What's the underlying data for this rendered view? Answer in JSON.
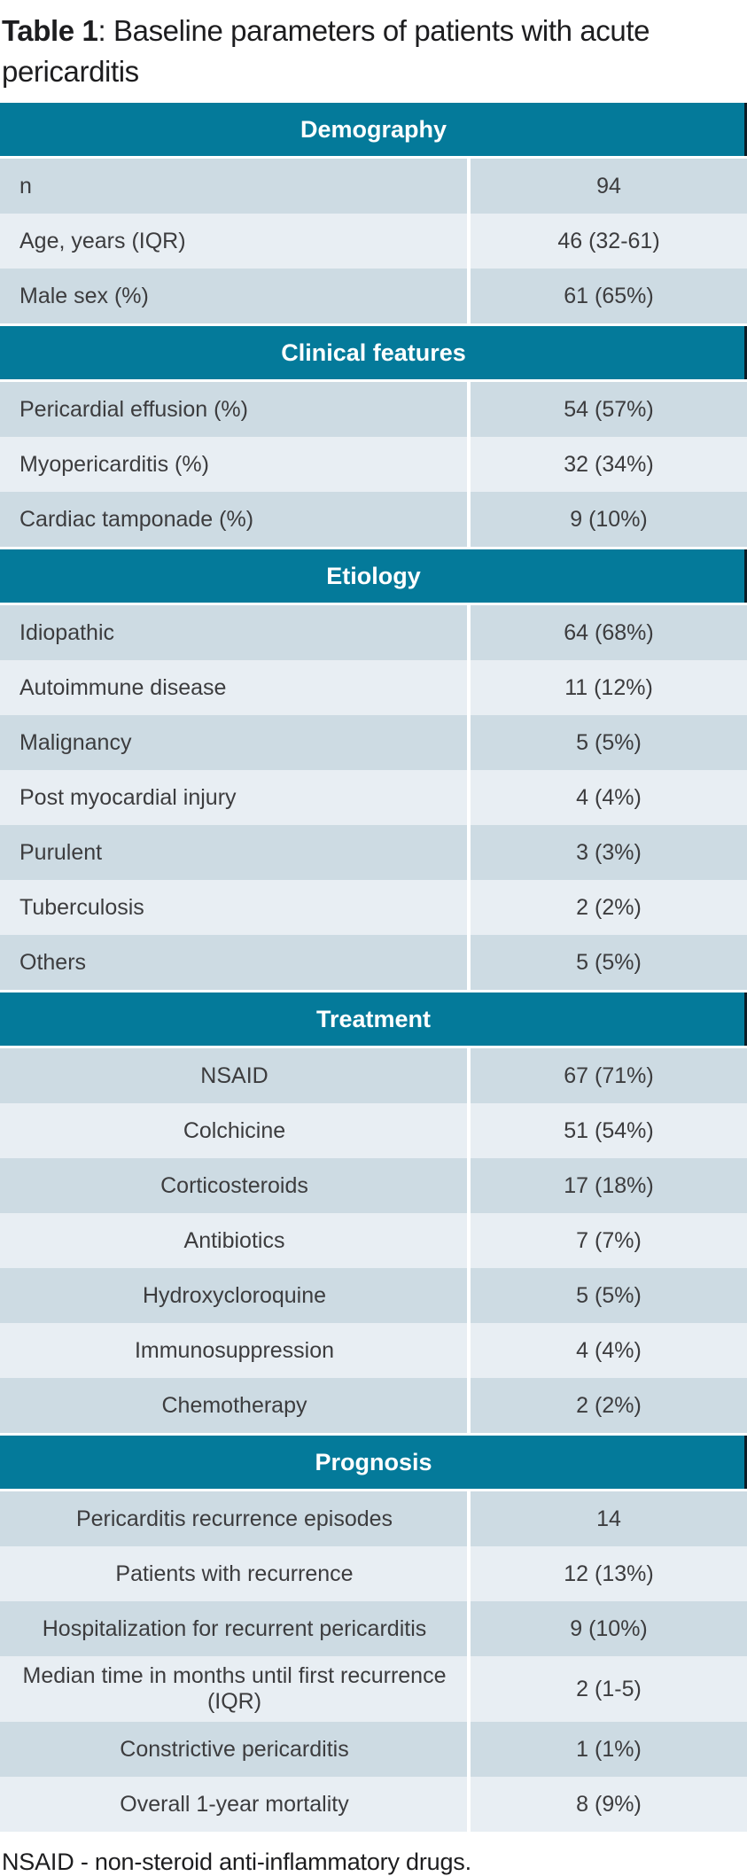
{
  "page": {
    "title_bold": "Table 1",
    "title_rest": ": Baseline parameters of patients with acute pericarditis",
    "footnote": "NSAID - non-steroid anti-inflammatory drugs."
  },
  "colors": {
    "header_bg": "#047A9A",
    "header_text": "#FFFFFF",
    "header_edge": "#0B1C26",
    "row_dark": "#CDDBE3",
    "row_light": "#E8EEF3",
    "text": "#3C3C3E"
  },
  "table": {
    "sections": [
      {
        "header": "Demography",
        "align": "left",
        "rows": [
          {
            "label": "n",
            "value": "94"
          },
          {
            "label": "Age, years (IQR)",
            "value": "46 (32-61)"
          },
          {
            "label": "Male sex (%)",
            "value": "61 (65%)"
          }
        ]
      },
      {
        "header": "Clinical features",
        "align": "left",
        "rows": [
          {
            "label": "Pericardial effusion (%)",
            "value": "54 (57%)"
          },
          {
            "label": "Myopericarditis (%)",
            "value": "32 (34%)"
          },
          {
            "label": "Cardiac tamponade (%)",
            "value": "9 (10%)"
          }
        ]
      },
      {
        "header": "Etiology",
        "align": "left",
        "rows": [
          {
            "label": "Idiopathic",
            "value": "64 (68%)"
          },
          {
            "label": "Autoimmune disease",
            "value": "11 (12%)"
          },
          {
            "label": "Malignancy",
            "value": "5 (5%)"
          },
          {
            "label": "Post myocardial injury",
            "value": "4 (4%)"
          },
          {
            "label": "Purulent",
            "value": "3 (3%)"
          },
          {
            "label": "Tuberculosis",
            "value": "2 (2%)"
          },
          {
            "label": "Others",
            "value": "5 (5%)"
          }
        ]
      },
      {
        "header": "Treatment",
        "align": "center",
        "rows": [
          {
            "label": "NSAID",
            "value": "67 (71%)"
          },
          {
            "label": "Colchicine",
            "value": "51 (54%)"
          },
          {
            "label": "Corticosteroids",
            "value": "17 (18%)"
          },
          {
            "label": "Antibiotics",
            "value": "7 (7%)"
          },
          {
            "label": "Hydroxycloroquine",
            "value": "5 (5%)"
          },
          {
            "label": "Immunosuppression",
            "value": "4 (4%)"
          },
          {
            "label": "Chemotherapy",
            "value": "2 (2%)"
          }
        ]
      },
      {
        "header": "Prognosis",
        "align": "center",
        "rows": [
          {
            "label": "Pericarditis recurrence episodes",
            "value": "14"
          },
          {
            "label": "Patients with recurrence",
            "value": "12 (13%)"
          },
          {
            "label": "Hospitalization for recurrent pericarditis",
            "value": "9 (10%)"
          },
          {
            "label": "Median time in months until first recurrence (IQR)",
            "value": "2 (1-5)"
          },
          {
            "label": "Constrictive pericarditis",
            "value": "1 (1%)"
          },
          {
            "label": "Overall 1-year mortality",
            "value": "8 (9%)"
          }
        ]
      }
    ]
  }
}
